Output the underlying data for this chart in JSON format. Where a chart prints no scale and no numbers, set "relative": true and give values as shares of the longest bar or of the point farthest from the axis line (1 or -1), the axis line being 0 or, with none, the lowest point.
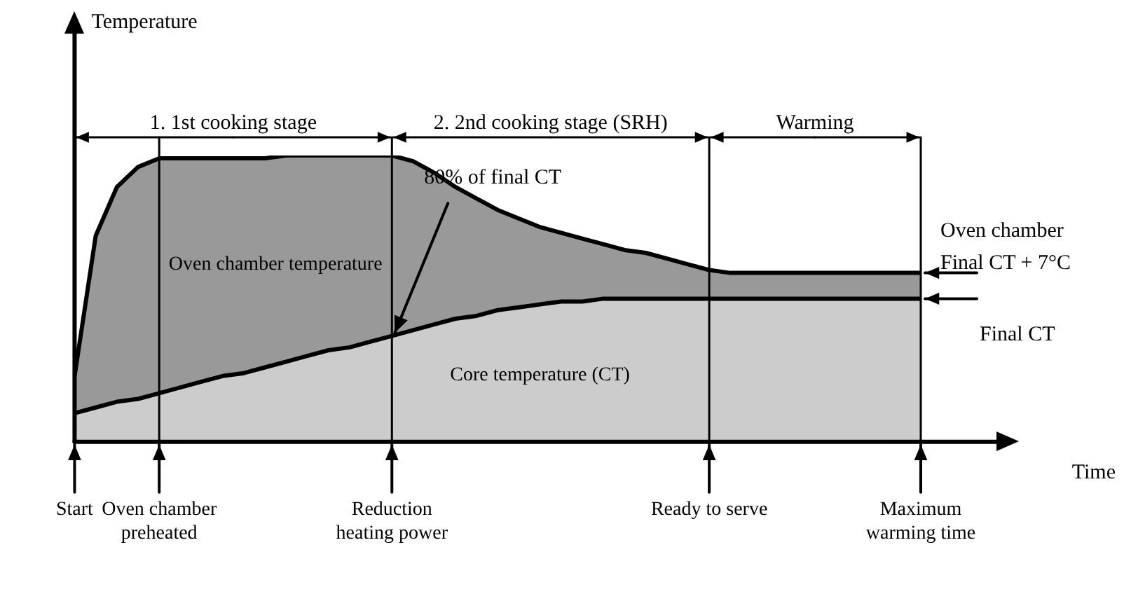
{
  "chart_data": {
    "type": "area",
    "relative": true,
    "xlabel": "Time",
    "legend": false,
    "grid": false,
    "categories": [
      "Start",
      null,
      null,
      null,
      "Oven chamber preheated",
      null,
      null,
      null,
      null,
      null,
      null,
      null,
      null,
      null,
      null,
      "Reduction heating power",
      null,
      null,
      null,
      null,
      null,
      null,
      null,
      null,
      null,
      null,
      null,
      null,
      null,
      null,
      "Ready to serve",
      null,
      null,
      null,
      null,
      null,
      null,
      null,
      null,
      null,
      "Maximum warming time"
    ],
    "series": [
      {
        "name": "Oven chamber temperature",
        "color": "#999999",
        "values": [
          0.23,
          0.72,
          0.89,
          0.96,
          0.99,
          0.99,
          0.99,
          0.99,
          0.99,
          0.99,
          1.0,
          1.0,
          1.0,
          1.0,
          1.0,
          1.0,
          0.98,
          0.94,
          0.89,
          0.85,
          0.81,
          0.78,
          0.75,
          0.73,
          0.71,
          0.69,
          0.67,
          0.66,
          0.64,
          0.62,
          0.6,
          0.59,
          0.59,
          0.59,
          0.59,
          0.59,
          0.59,
          0.59,
          0.59,
          0.59,
          0.59
        ]
      },
      {
        "name": "Core temperature (CT)",
        "color": "#cccccc",
        "values": [
          0.1,
          0.12,
          0.14,
          0.15,
          0.17,
          0.19,
          0.21,
          0.23,
          0.24,
          0.26,
          0.28,
          0.3,
          0.32,
          0.33,
          0.35,
          0.37,
          0.39,
          0.41,
          0.43,
          0.44,
          0.46,
          0.47,
          0.48,
          0.49,
          0.49,
          0.5,
          0.5,
          0.5,
          0.5,
          0.5,
          0.5,
          0.5,
          0.5,
          0.5,
          0.5,
          0.5,
          0.5,
          0.5,
          0.5,
          0.5,
          0.5
        ]
      }
    ],
    "ref_lines": [
      {
        "axis": "x",
        "value": "Oven chamber preheated"
      },
      {
        "axis": "x",
        "value": "Reduction heating power"
      },
      {
        "axis": "x",
        "value": "Ready to serve"
      },
      {
        "axis": "x",
        "value": "Maximum warming time"
      }
    ],
    "annotations": [
      "Temperature",
      "1. 1st cooking stage",
      "2. 2nd cooking stage (SRH)",
      "Warming",
      {
        "text": "80% of final CT",
        "x": "Reduction heating power",
        "y": 0.37
      },
      {
        "text": "Oven chamber\nFinal CT + 7°C",
        "x": "Maximum warming time",
        "y": 0.59
      },
      {
        "text": "Final CT",
        "x": "Maximum warming time",
        "y": 0.5
      }
    ]
  }
}
